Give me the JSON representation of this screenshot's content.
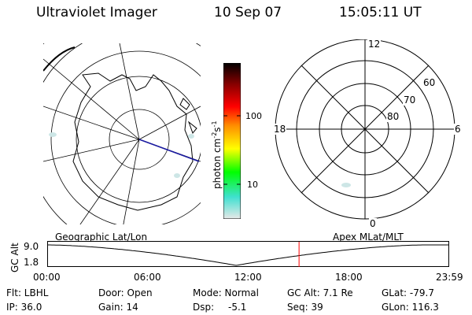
{
  "header": {
    "instrument": "Ultraviolet Imager",
    "date": "10 Sep 07",
    "time": "15:05:11 UT"
  },
  "geo_panel": {
    "label": "Geographic Lat/Lon"
  },
  "colorbar": {
    "unit_text": "photon cm",
    "unit_exp1": "-2",
    "unit_mid": "s",
    "unit_exp2": "-1",
    "ticks": [
      "100",
      "10"
    ],
    "colors": [
      "#e8e8e8",
      "#40e0d0",
      "#00ff00",
      "#ffff00",
      "#ff8c00",
      "#ff0000",
      "#8b0000",
      "#000000"
    ]
  },
  "apex_panel": {
    "label": "Apex MLat/MLT",
    "mlt_labels": [
      "12",
      "18",
      "6",
      "0"
    ],
    "lat_labels": [
      "60",
      "70",
      "80"
    ]
  },
  "timeline": {
    "ylabel": "GC Alt",
    "y_ticks": [
      "9.0",
      "1.8"
    ],
    "x_ticks": [
      "00:00",
      "06:00",
      "12:00",
      "18:00",
      "23:59"
    ],
    "current_time_fraction": 0.627,
    "line_color": "#000000",
    "marker_color": "#ff0000"
  },
  "status": {
    "flt": "Flt: LBHL",
    "ip": "IP: 36.0",
    "door": "Door: Open",
    "gain": "Gain: 14",
    "mode": "Mode: Normal",
    "dsp": "Dsp:",
    "dsp_val": "-5.1",
    "gcalt": "GC Alt: 7.1 Re",
    "seq": "Seq: 39",
    "glat": "GLat: -79.7",
    "glon": "GLon: 116.3"
  }
}
